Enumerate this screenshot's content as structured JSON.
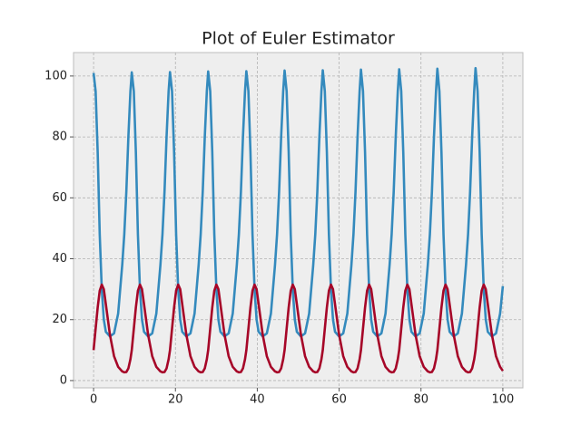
{
  "chart_data": {
    "type": "line",
    "title": "Plot of Euler Estimator",
    "x": [
      0,
      0.5,
      1,
      1.5,
      2,
      2.5,
      3,
      4,
      5,
      6,
      7,
      7.5,
      8,
      8.5,
      9,
      9.33,
      9.83,
      10.33,
      10.83,
      11.33,
      11.83,
      12.33,
      13.33,
      14.33,
      15.33,
      16.33,
      16.83,
      17.33,
      17.83,
      18.33,
      18.67,
      19.17,
      19.67,
      20.17,
      20.67,
      21.17,
      21.67,
      22.67,
      23.67,
      24.67,
      25.67,
      26.17,
      26.67,
      27.17,
      27.67,
      28,
      28.5,
      29,
      29.5,
      30,
      30.5,
      31,
      32,
      33,
      34,
      35,
      35.5,
      36,
      36.5,
      37,
      37.33,
      37.83,
      38.33,
      38.83,
      39.33,
      39.83,
      40.33,
      41.33,
      42.33,
      43.33,
      44.33,
      44.83,
      45.33,
      45.83,
      46.33,
      46.67,
      47.17,
      47.67,
      48.17,
      48.67,
      49.17,
      49.67,
      50.67,
      51.67,
      52.67,
      53.67,
      54.17,
      54.67,
      55.17,
      55.67,
      56,
      56.5,
      57,
      57.5,
      58,
      58.5,
      59,
      60,
      61,
      62,
      63,
      63.5,
      64,
      64.5,
      65,
      65.33,
      65.83,
      66.33,
      66.83,
      67.33,
      67.83,
      68.33,
      69.33,
      70.33,
      71.33,
      72.33,
      72.83,
      73.33,
      73.83,
      74.33,
      74.67,
      75.17,
      75.67,
      76.17,
      76.67,
      77.17,
      77.67,
      78.67,
      79.67,
      80.67,
      81.67,
      82.17,
      82.67,
      83.17,
      83.67,
      84,
      84.5,
      85,
      85.5,
      86,
      86.5,
      87,
      88,
      89,
      90,
      91,
      91.5,
      92,
      92.5,
      93,
      93.33,
      93.83,
      94.33,
      94.83,
      95.33,
      95.83,
      96.33,
      97.33,
      98.33,
      99.33,
      100
    ],
    "series": [
      {
        "color": "#348abd",
        "values": [
          101,
          95,
          75,
          48,
          30,
          20,
          16,
          14.5,
          15.5,
          22,
          38,
          48,
          62,
          80,
          95,
          101.2,
          95,
          75,
          48,
          30,
          20,
          16,
          14.5,
          15.5,
          22,
          38,
          48,
          62,
          80,
          95,
          101.3,
          95,
          75,
          48,
          30,
          20,
          16,
          14.5,
          15.5,
          22,
          38,
          48,
          62,
          80,
          95,
          101.5,
          95,
          75,
          48,
          30,
          20,
          16,
          14.5,
          15.5,
          22,
          38,
          48,
          62,
          80,
          95,
          101.6,
          95,
          75,
          48,
          30,
          20,
          16,
          14.5,
          15.5,
          22,
          38,
          48,
          62,
          80,
          95,
          101.8,
          95,
          75,
          48,
          30,
          20,
          16,
          14.5,
          15.5,
          22,
          38,
          48,
          62,
          80,
          95,
          101.9,
          95,
          75,
          48,
          30,
          20,
          16,
          14.5,
          15.5,
          22,
          38,
          48,
          62,
          80,
          95,
          102.1,
          95,
          75,
          48,
          30,
          20,
          16,
          14.5,
          15.5,
          22,
          38,
          48,
          62,
          80,
          95,
          102.2,
          95,
          75,
          48,
          30,
          20,
          16,
          14.5,
          15.5,
          22,
          38,
          48,
          62,
          80,
          95,
          102.4,
          95,
          75,
          48,
          30,
          20,
          16,
          14.5,
          15.5,
          22,
          38,
          48,
          62,
          80,
          95,
          102.6,
          95,
          75,
          48,
          30,
          20,
          16,
          14.5,
          15.5,
          22,
          31
        ]
      },
      {
        "color": "#a60628",
        "values": [
          10,
          17,
          24,
          29.5,
          31.5,
          30,
          25,
          15,
          8,
          4.5,
          3,
          2.7,
          2.8,
          4,
          7,
          10,
          17,
          24,
          29.5,
          31.5,
          30,
          25,
          15,
          8,
          4.5,
          3,
          2.7,
          2.8,
          4,
          7,
          10,
          17,
          24,
          29.5,
          31.5,
          30,
          25,
          15,
          8,
          4.5,
          3,
          2.7,
          2.8,
          4,
          7,
          10,
          17,
          24,
          29.5,
          31.5,
          30,
          25,
          15,
          8,
          4.5,
          3,
          2.7,
          2.8,
          4,
          7,
          10,
          17,
          24,
          29.5,
          31.5,
          30,
          25,
          15,
          8,
          4.5,
          3,
          2.7,
          2.8,
          4,
          7,
          10,
          17,
          24,
          29.5,
          31.5,
          30,
          25,
          15,
          8,
          4.5,
          3,
          2.7,
          2.8,
          4,
          7,
          10,
          17,
          24,
          29.5,
          31.5,
          30,
          25,
          15,
          8,
          4.5,
          3,
          2.7,
          2.8,
          4,
          7,
          10,
          17,
          24,
          29.5,
          31.5,
          30,
          25,
          15,
          8,
          4.5,
          3,
          2.7,
          2.8,
          4,
          7,
          10,
          17,
          24,
          29.5,
          31.5,
          30,
          25,
          15,
          8,
          4.5,
          3,
          2.7,
          2.8,
          4,
          7,
          10,
          17,
          24,
          29.5,
          31.5,
          30,
          25,
          15,
          8,
          4.5,
          3,
          2.7,
          2.8,
          4,
          7,
          10,
          17,
          24,
          29.5,
          31.5,
          30,
          25,
          15,
          8,
          4.5,
          3.2
        ]
      }
    ],
    "xlim": [
      -4.9,
      104.9
    ],
    "xticks": [
      0,
      20,
      40,
      60,
      80,
      100
    ],
    "ylim": [
      -2.4,
      107.7
    ],
    "yticks": [
      0,
      20,
      40,
      60,
      80,
      100
    ],
    "grid": true
  }
}
